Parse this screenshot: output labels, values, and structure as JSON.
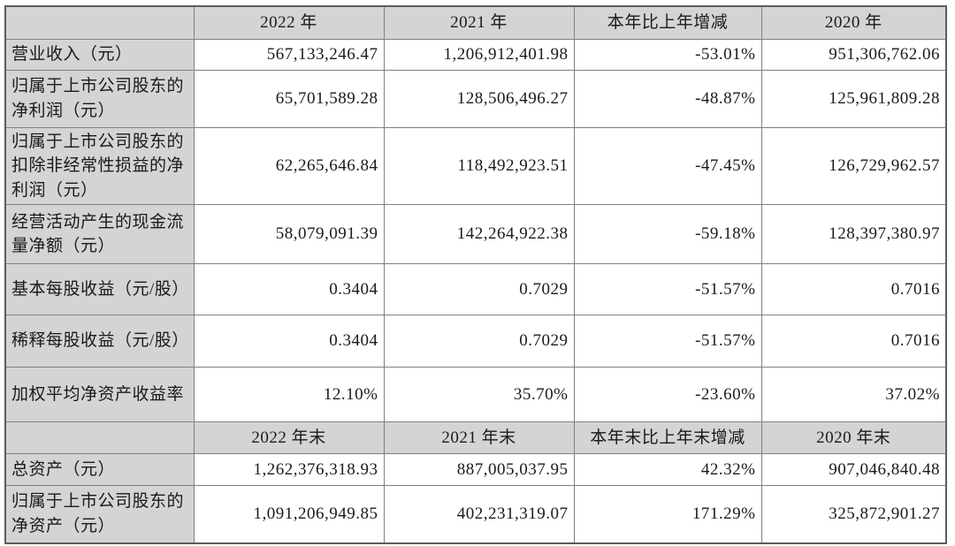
{
  "colors": {
    "header_background": "#d4d4d4",
    "label_background": "#d4d4d4",
    "inner_border": "#808080",
    "outer_border": "#5c5c5c",
    "text": "#1a1a1a",
    "page_background": "#ffffff"
  },
  "table": {
    "rows": [
      {
        "type": "header",
        "cells": [
          "",
          "2022 年",
          "2021 年",
          "本年比上年增减",
          "2020 年"
        ]
      },
      {
        "type": "data",
        "cells": [
          "营业收入（元）",
          "567,133,246.47",
          "1,206,912,401.98",
          "-53.01%",
          "951,306,762.06"
        ]
      },
      {
        "type": "data",
        "cells": [
          "归属于上市公司股东的净利润（元）",
          "65,701,589.28",
          "128,506,496.27",
          "-48.87%",
          "125,961,809.28"
        ]
      },
      {
        "type": "data",
        "cells": [
          "归属于上市公司股东的扣除非经常性损益的净利润（元）",
          "62,265,646.84",
          "118,492,923.51",
          "-47.45%",
          "126,729,962.57"
        ]
      },
      {
        "type": "data",
        "cells": [
          "经营活动产生的现金流量净额（元）",
          "58,079,091.39",
          "142,264,922.38",
          "-59.18%",
          "128,397,380.97"
        ]
      },
      {
        "type": "data",
        "cells": [
          "基本每股收益（元/股）",
          "0.3404",
          "0.7029",
          "-51.57%",
          "0.7016"
        ]
      },
      {
        "type": "data",
        "cells": [
          "稀释每股收益（元/股）",
          "0.3404",
          "0.7029",
          "-51.57%",
          "0.7016"
        ]
      },
      {
        "type": "data",
        "cells": [
          "加权平均净资产收益率",
          "12.10%",
          "35.70%",
          "-23.60%",
          "37.02%"
        ]
      },
      {
        "type": "header",
        "cells": [
          "",
          "2022 年末",
          "2021 年末",
          "本年末比上年末增减",
          "2020 年末"
        ]
      },
      {
        "type": "data",
        "cells": [
          "总资产（元）",
          "1,262,376,318.93",
          "887,005,037.95",
          "42.32%",
          "907,046,840.48"
        ]
      },
      {
        "type": "data",
        "cells": [
          "归属于上市公司股东的净资产（元）",
          "1,091,206,949.85",
          "402,231,319.07",
          "171.29%",
          "325,872,901.27"
        ]
      }
    ]
  }
}
